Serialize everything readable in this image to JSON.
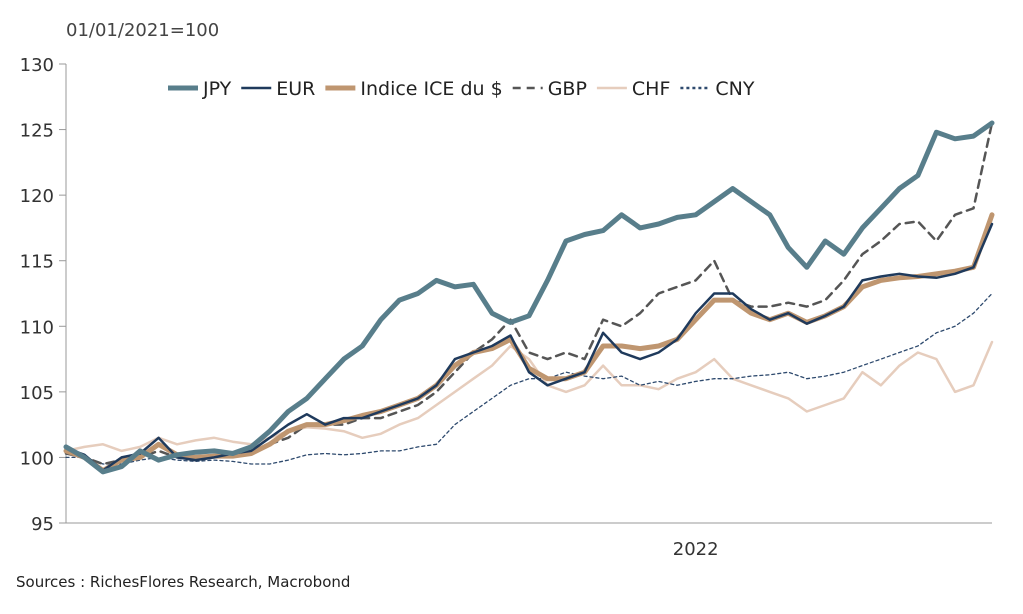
{
  "chart_data": {
    "type": "line",
    "unit_label": "01/01/2021=100",
    "x_tick_label": "2022",
    "ylim": [
      95,
      130
    ],
    "yticks": [
      95,
      100,
      105,
      110,
      115,
      120,
      125,
      130
    ],
    "x_range": [
      0,
      100
    ],
    "x_tick_position": 68,
    "legend_position": "top",
    "grid": false,
    "series": [
      {
        "name": "JPY",
        "color": "#587e8b",
        "width": 5,
        "dash": "",
        "x": [
          0,
          2,
          4,
          6,
          8,
          10,
          12,
          14,
          16,
          18,
          20,
          22,
          24,
          26,
          28,
          30,
          32,
          34,
          36,
          38,
          40,
          42,
          44,
          46,
          48,
          50,
          52,
          54,
          56,
          58,
          60,
          62,
          64,
          66,
          68,
          70,
          72,
          74,
          76,
          78,
          80,
          82,
          84,
          86,
          88,
          90,
          92,
          94,
          96,
          98,
          100
        ],
        "values": [
          100.8,
          100,
          98.9,
          99.3,
          100.5,
          99.8,
          100.2,
          100.4,
          100.5,
          100.3,
          100.8,
          102,
          103.5,
          104.5,
          106,
          107.5,
          108.5,
          110.5,
          112,
          112.5,
          113.5,
          113,
          113.2,
          111,
          110.3,
          110.8,
          113.5,
          116.5,
          117,
          117.3,
          118.5,
          117.5,
          117.8,
          118.3,
          118.5,
          119.5,
          120.5,
          119.5,
          118.5,
          116,
          114.5,
          116.5,
          115.5,
          117.5,
          119,
          120.5,
          121.5,
          124.8,
          124.3,
          124.5,
          125.5
        ]
      },
      {
        "name": "EUR",
        "color": "#1f3a5c",
        "width": 2.5,
        "dash": "",
        "x": [
          0,
          2,
          4,
          6,
          8,
          10,
          12,
          14,
          16,
          18,
          20,
          22,
          24,
          26,
          28,
          30,
          32,
          34,
          36,
          38,
          40,
          42,
          44,
          46,
          48,
          50,
          52,
          54,
          56,
          58,
          60,
          62,
          64,
          66,
          68,
          70,
          72,
          74,
          76,
          78,
          80,
          82,
          84,
          86,
          88,
          90,
          92,
          94,
          96,
          98,
          100
        ],
        "values": [
          100.7,
          100.2,
          99,
          100,
          100.3,
          101.5,
          100,
          99.8,
          100,
          100.3,
          100.5,
          101.5,
          102.5,
          103.3,
          102.5,
          103,
          103,
          103.5,
          104,
          104.5,
          105.5,
          107.5,
          108,
          108.5,
          109.3,
          106.5,
          105.5,
          106,
          106.5,
          109.5,
          108,
          107.5,
          108,
          109,
          111,
          112.5,
          112.5,
          111.3,
          110.5,
          111,
          110.2,
          110.8,
          111.5,
          113.5,
          113.8,
          114,
          113.8,
          113.7,
          114,
          114.5,
          117.8
        ]
      },
      {
        "name": "Indice ICE du $",
        "color": "#bf9670",
        "width": 5,
        "dash": "",
        "x": [
          0,
          2,
          4,
          6,
          8,
          10,
          12,
          14,
          16,
          18,
          20,
          22,
          24,
          26,
          28,
          30,
          32,
          34,
          36,
          38,
          40,
          42,
          44,
          46,
          48,
          50,
          52,
          54,
          56,
          58,
          60,
          62,
          64,
          66,
          68,
          70,
          72,
          74,
          76,
          78,
          80,
          82,
          84,
          86,
          88,
          90,
          92,
          94,
          96,
          98,
          100
        ],
        "values": [
          100.5,
          100,
          99,
          99.8,
          100,
          101,
          100.2,
          100,
          100.1,
          100.1,
          100.3,
          101,
          102,
          102.5,
          102.5,
          102.8,
          103.2,
          103.5,
          104,
          104.5,
          105.5,
          107,
          108,
          108.3,
          109,
          106.8,
          106,
          106,
          106.5,
          108.5,
          108.5,
          108.3,
          108.5,
          109,
          110.5,
          112,
          112,
          111,
          110.5,
          111,
          110.3,
          110.8,
          111.5,
          113,
          113.5,
          113.7,
          113.8,
          114,
          114.2,
          114.5,
          118.5
        ]
      },
      {
        "name": "GBP",
        "color": "#555555",
        "width": 2.5,
        "dash": "8,6",
        "x": [
          0,
          2,
          4,
          6,
          8,
          10,
          12,
          14,
          16,
          18,
          20,
          22,
          24,
          26,
          28,
          30,
          32,
          34,
          36,
          38,
          40,
          42,
          44,
          46,
          48,
          50,
          52,
          54,
          56,
          58,
          60,
          62,
          64,
          66,
          68,
          70,
          72,
          74,
          76,
          78,
          80,
          82,
          84,
          86,
          88,
          90,
          92,
          94,
          96,
          98,
          100
        ],
        "values": [
          100.3,
          100,
          99.5,
          99.8,
          100,
          100.5,
          100,
          99.8,
          100,
          100.3,
          100.5,
          101,
          101.5,
          102.5,
          102.5,
          102.5,
          103,
          103,
          103.5,
          104,
          105,
          106.5,
          108,
          109,
          110.5,
          108,
          107.5,
          108,
          107.5,
          110.5,
          110,
          111,
          112.5,
          113,
          113.5,
          115,
          112,
          111.5,
          111.5,
          111.8,
          111.5,
          112,
          113.5,
          115.5,
          116.5,
          117.8,
          118,
          116.5,
          118.5,
          119,
          125.5
        ]
      },
      {
        "name": "CHF",
        "color": "#e6cdbd",
        "width": 2.5,
        "dash": "",
        "x": [
          0,
          2,
          4,
          6,
          8,
          10,
          12,
          14,
          16,
          18,
          20,
          22,
          24,
          26,
          28,
          30,
          32,
          34,
          36,
          38,
          40,
          42,
          44,
          46,
          48,
          50,
          52,
          54,
          56,
          58,
          60,
          62,
          64,
          66,
          68,
          70,
          72,
          74,
          76,
          78,
          80,
          82,
          84,
          86,
          88,
          90,
          92,
          94,
          96,
          98,
          100
        ],
        "values": [
          100.5,
          100.8,
          101,
          100.5,
          100.8,
          101.5,
          101,
          101.3,
          101.5,
          101.2,
          101,
          101.5,
          102,
          102.3,
          102.2,
          102,
          101.5,
          101.8,
          102.5,
          103,
          104,
          105,
          106,
          107,
          108.5,
          107.5,
          105.5,
          105,
          105.5,
          107,
          105.5,
          105.5,
          105.2,
          106,
          106.5,
          107.5,
          106,
          105.5,
          105,
          104.5,
          103.5,
          104,
          104.5,
          106.5,
          105.5,
          107,
          108,
          107.5,
          105,
          105.5,
          108.8
        ]
      },
      {
        "name": "CNY",
        "color": "#2e4a6e",
        "width": 1.3,
        "dash": "3,3",
        "x": [
          0,
          2,
          4,
          6,
          8,
          10,
          12,
          14,
          16,
          18,
          20,
          22,
          24,
          26,
          28,
          30,
          32,
          34,
          36,
          38,
          40,
          42,
          44,
          46,
          48,
          50,
          52,
          54,
          56,
          58,
          60,
          62,
          64,
          66,
          68,
          70,
          72,
          74,
          76,
          78,
          80,
          82,
          84,
          86,
          88,
          90,
          92,
          94,
          96,
          98,
          100
        ],
        "values": [
          100,
          100,
          99.5,
          99.5,
          99.8,
          100,
          99.8,
          99.7,
          99.8,
          99.7,
          99.5,
          99.5,
          99.8,
          100.2,
          100.3,
          100.2,
          100.3,
          100.5,
          100.5,
          100.8,
          101,
          102.5,
          103.5,
          104.5,
          105.5,
          106,
          106,
          106.5,
          106.2,
          106,
          106.2,
          105.5,
          105.8,
          105.5,
          105.8,
          106,
          106,
          106.2,
          106.3,
          106.5,
          106,
          106.2,
          106.5,
          107,
          107.5,
          108,
          108.5,
          109.5,
          110,
          111,
          112.5
        ]
      }
    ]
  },
  "source": "Sources : RichesFlores Research, Macrobond"
}
